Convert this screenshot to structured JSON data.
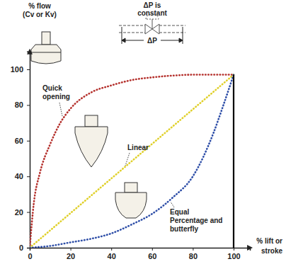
{
  "chart_data": {
    "type": "line",
    "x_label": "% lift or stroke",
    "y_label": "% flow (Cv or Kv)",
    "xlim": [
      0,
      108
    ],
    "xticks": [
      0,
      20,
      40,
      60,
      80,
      100
    ],
    "ylim": [
      0,
      110
    ],
    "yticks": [
      0,
      20,
      40,
      60,
      80,
      100
    ],
    "grid": false,
    "annotations": [
      "ΔP is constant",
      "ΔP"
    ],
    "series": [
      {
        "name": "Quick opening",
        "color": "#b5322e",
        "line_style": "dotted",
        "x": [
          0,
          2,
          5,
          10,
          15,
          20,
          30,
          40,
          50,
          60,
          70,
          80,
          90,
          100
        ],
        "values": [
          0,
          25,
          42,
          58,
          70,
          78,
          87,
          91,
          94,
          95.5,
          96.5,
          97,
          97,
          97
        ]
      },
      {
        "name": "Linear",
        "color": "#e0d02a",
        "line_style": "dotted",
        "x": [
          0,
          100
        ],
        "values": [
          0,
          97
        ]
      },
      {
        "name": "Equal Percentage and butterfly",
        "color": "#2f4fa8",
        "line_style": "dotted",
        "x": [
          0,
          10,
          20,
          30,
          40,
          50,
          60,
          70,
          80,
          90,
          95,
          100
        ],
        "values": [
          0,
          1,
          3,
          5,
          8,
          13,
          19,
          28,
          40,
          64,
          80,
          97
        ]
      },
      {
        "color": "#000000",
        "line_style": "solid",
        "x": [
          100,
          100
        ],
        "values": [
          0,
          97
        ]
      }
    ]
  }
}
